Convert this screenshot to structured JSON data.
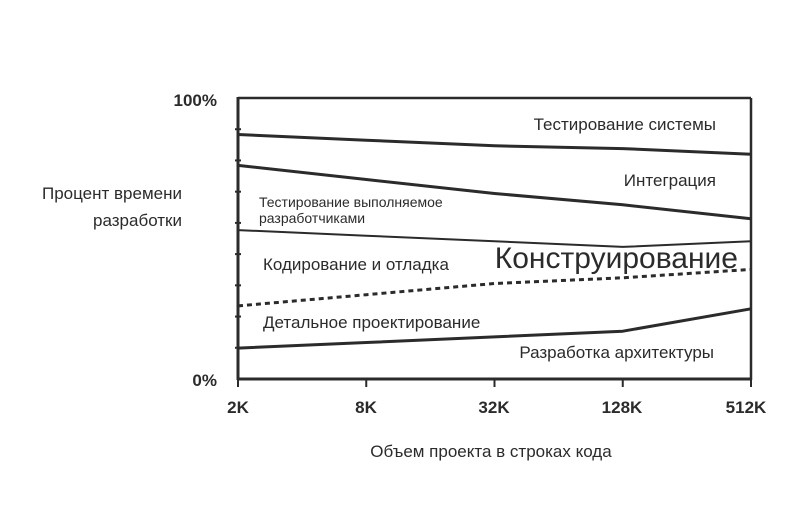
{
  "chart_data": {
    "type": "area",
    "title": "",
    "xlabel": "Объем проекта в строках кода",
    "ylabel_lines": [
      "Процент времени",
      "разработки"
    ],
    "categories": [
      "2K",
      "8K",
      "32K",
      "128K",
      "512K"
    ],
    "y_tick_labels": [
      "100%",
      "0%"
    ],
    "ylim": [
      0,
      100
    ],
    "boundaries": [
      {
        "name": "Разработка архитектуры / Детальное проектирование",
        "style": "solid",
        "values": [
          11,
          13,
          15,
          17,
          25
        ]
      },
      {
        "name": "Детальное проектирование / Кодирование и отладка",
        "style": "dashed",
        "values": [
          26,
          30,
          34,
          36,
          39
        ]
      },
      {
        "name": "Кодирование и отладка / Тестирование выполняемое разработчиками",
        "style": "solid-thin",
        "values": [
          53,
          51,
          49,
          47,
          49
        ]
      },
      {
        "name": "Тестирование выполняемое разработчиками / Интеграция",
        "style": "solid",
        "values": [
          76,
          71,
          66,
          62,
          57
        ]
      },
      {
        "name": "Интеграция / Тестирование системы",
        "style": "solid",
        "values": [
          87,
          85,
          83,
          82,
          80
        ]
      }
    ],
    "regions": [
      {
        "label": "Разработка архитектуры",
        "from": 0,
        "to": 11
      },
      {
        "label": "Детальное проектирование",
        "from": 11,
        "to": 26
      },
      {
        "label": "Кодирование и отладка",
        "from": 26,
        "to": 53
      },
      {
        "label_lines": [
          "Тестирование выполняемое",
          "разработчиками"
        ],
        "from": 53,
        "to": 76
      },
      {
        "label": "Интеграция",
        "from": 76,
        "to": 87
      },
      {
        "label": "Тестирование системы",
        "from": 87,
        "to": 100
      }
    ],
    "annotation": "Конструирование",
    "grid": false,
    "legend": "none"
  }
}
